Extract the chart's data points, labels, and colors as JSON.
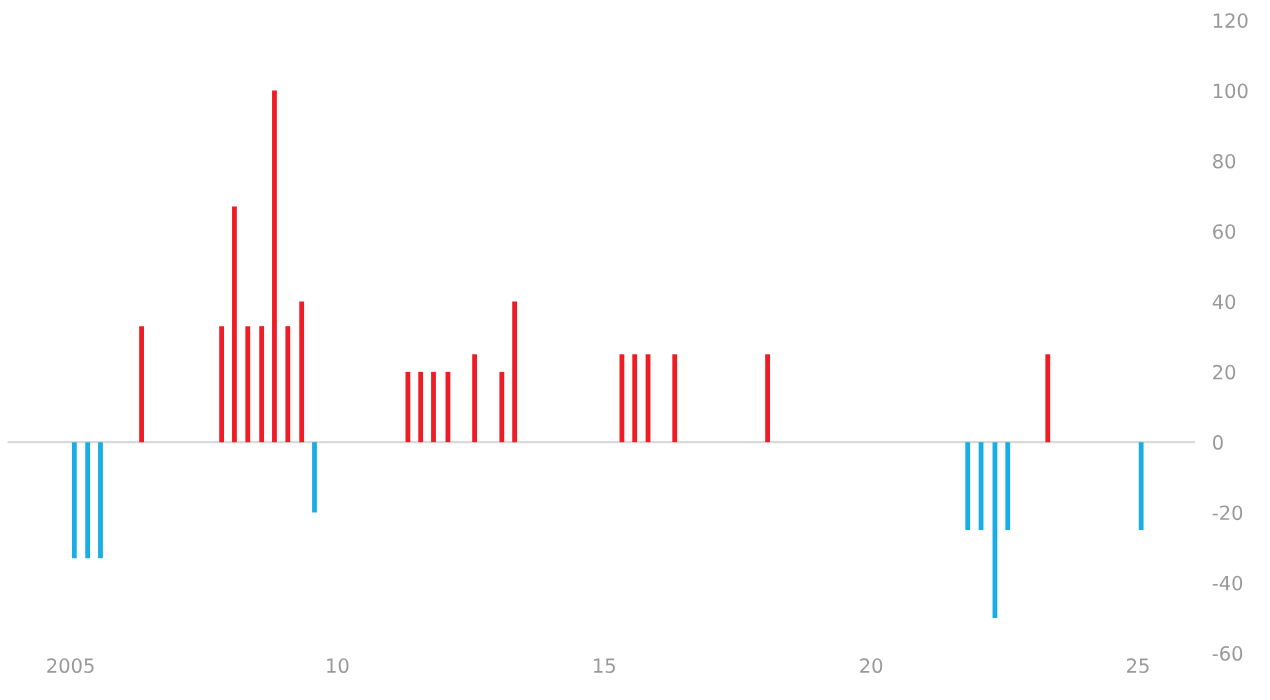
{
  "chart_data": {
    "type": "bar",
    "x": [
      2005.07,
      2005.32,
      2005.56,
      2006.33,
      2007.83,
      2008.07,
      2008.32,
      2008.58,
      2008.82,
      2009.07,
      2009.33,
      2009.57,
      2011.32,
      2011.56,
      2011.8,
      2012.07,
      2012.57,
      2013.08,
      2013.32,
      2015.33,
      2015.57,
      2015.82,
      2016.32,
      2018.06,
      2021.81,
      2022.06,
      2022.32,
      2022.56,
      2023.31,
      2025.06
    ],
    "values": [
      -33,
      -33,
      -33,
      33,
      33,
      67,
      33,
      33,
      100,
      33,
      40,
      -20,
      20,
      20,
      20,
      20,
      25,
      20,
      40,
      25,
      25,
      25,
      25,
      25,
      -25,
      -25,
      -50,
      -25,
      25,
      -25
    ],
    "colors": [
      "#1aade4",
      "#1aade4",
      "#1aade4",
      "#ee1c25",
      "#ee1c25",
      "#ee1c25",
      "#ee1c25",
      "#ee1c25",
      "#ee1c25",
      "#ee1c25",
      "#ee1c25",
      "#1aade4",
      "#ee1c25",
      "#ee1c25",
      "#ee1c25",
      "#ee1c25",
      "#ee1c25",
      "#ee1c25",
      "#ee1c25",
      "#ee1c25",
      "#ee1c25",
      "#ee1c25",
      "#ee1c25",
      "#ee1c25",
      "#1aade4",
      "#1aade4",
      "#1aade4",
      "#1aade4",
      "#ee1c25",
      "#1aade4"
    ],
    "xlim": [
      2003.82,
      2026.07
    ],
    "xticks": [
      {
        "value": 2005,
        "label": "2005"
      },
      {
        "value": 2010,
        "label": "10"
      },
      {
        "value": 2015,
        "label": "15"
      },
      {
        "value": 2020,
        "label": "20"
      },
      {
        "value": 2025,
        "label": "25"
      }
    ],
    "ylim": [
      -60,
      120
    ],
    "yticks": [
      -60,
      -40,
      -20,
      0,
      20,
      40,
      60,
      80,
      100,
      120
    ],
    "ref_lines": [
      {
        "axis": "y",
        "value": 0,
        "color": "#d9d9d9"
      }
    ],
    "grid": false,
    "legend": false
  }
}
